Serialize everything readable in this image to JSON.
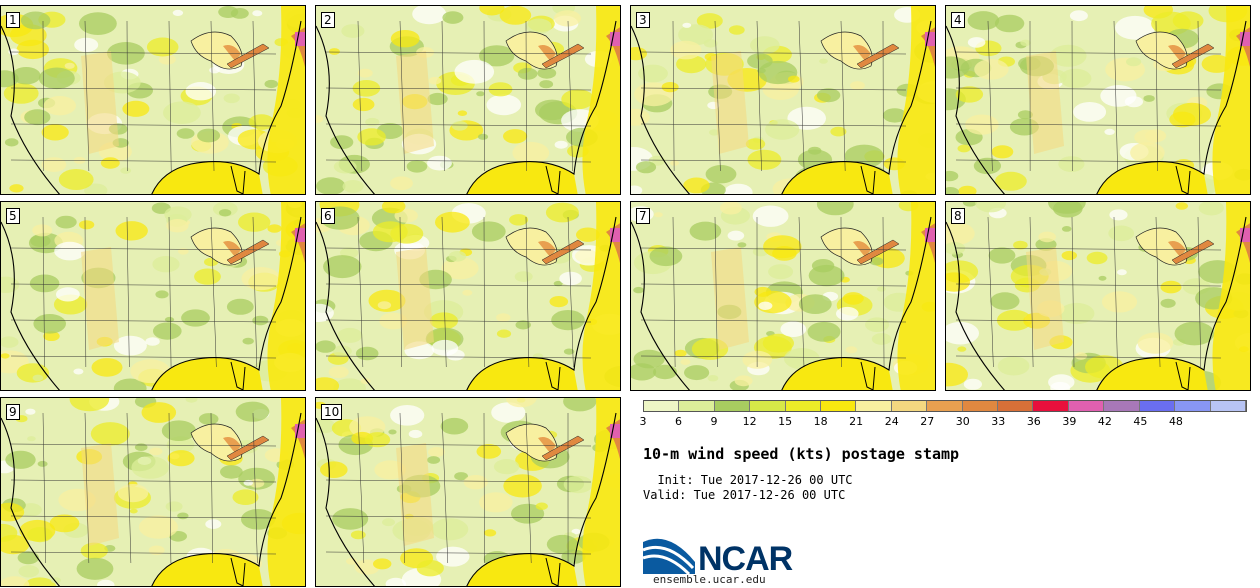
{
  "panels": [
    {
      "label": "1"
    },
    {
      "label": "2"
    },
    {
      "label": "3"
    },
    {
      "label": "4"
    },
    {
      "label": "5"
    },
    {
      "label": "6"
    },
    {
      "label": "7"
    },
    {
      "label": "8"
    },
    {
      "label": "9"
    },
    {
      "label": "10"
    }
  ],
  "colorbar": {
    "ticks": [
      "3",
      "6",
      "9",
      "12",
      "15",
      "18",
      "21",
      "24",
      "27",
      "30",
      "33",
      "36",
      "39",
      "42",
      "45",
      "48"
    ],
    "colors": [
      "#eef6c6",
      "#dcee9a",
      "#a8cc60",
      "#d6e848",
      "#ecec28",
      "#f8e810",
      "#f8f0a0",
      "#f4d880",
      "#e8a050",
      "#e08840",
      "#d87038",
      "#e8103c",
      "#e060b0",
      "#a878b8",
      "#6a6ef0",
      "#8896f4",
      "#b8c4f4"
    ]
  },
  "title": "10-m wind speed (kts) postage stamp",
  "init": "  Init: Tue 2017-12-26 00 UTC",
  "valid": "Valid: Tue 2017-12-26 00 UTC",
  "logo": {
    "name": "NCAR",
    "site": "ensemble.ucar.edu"
  }
}
